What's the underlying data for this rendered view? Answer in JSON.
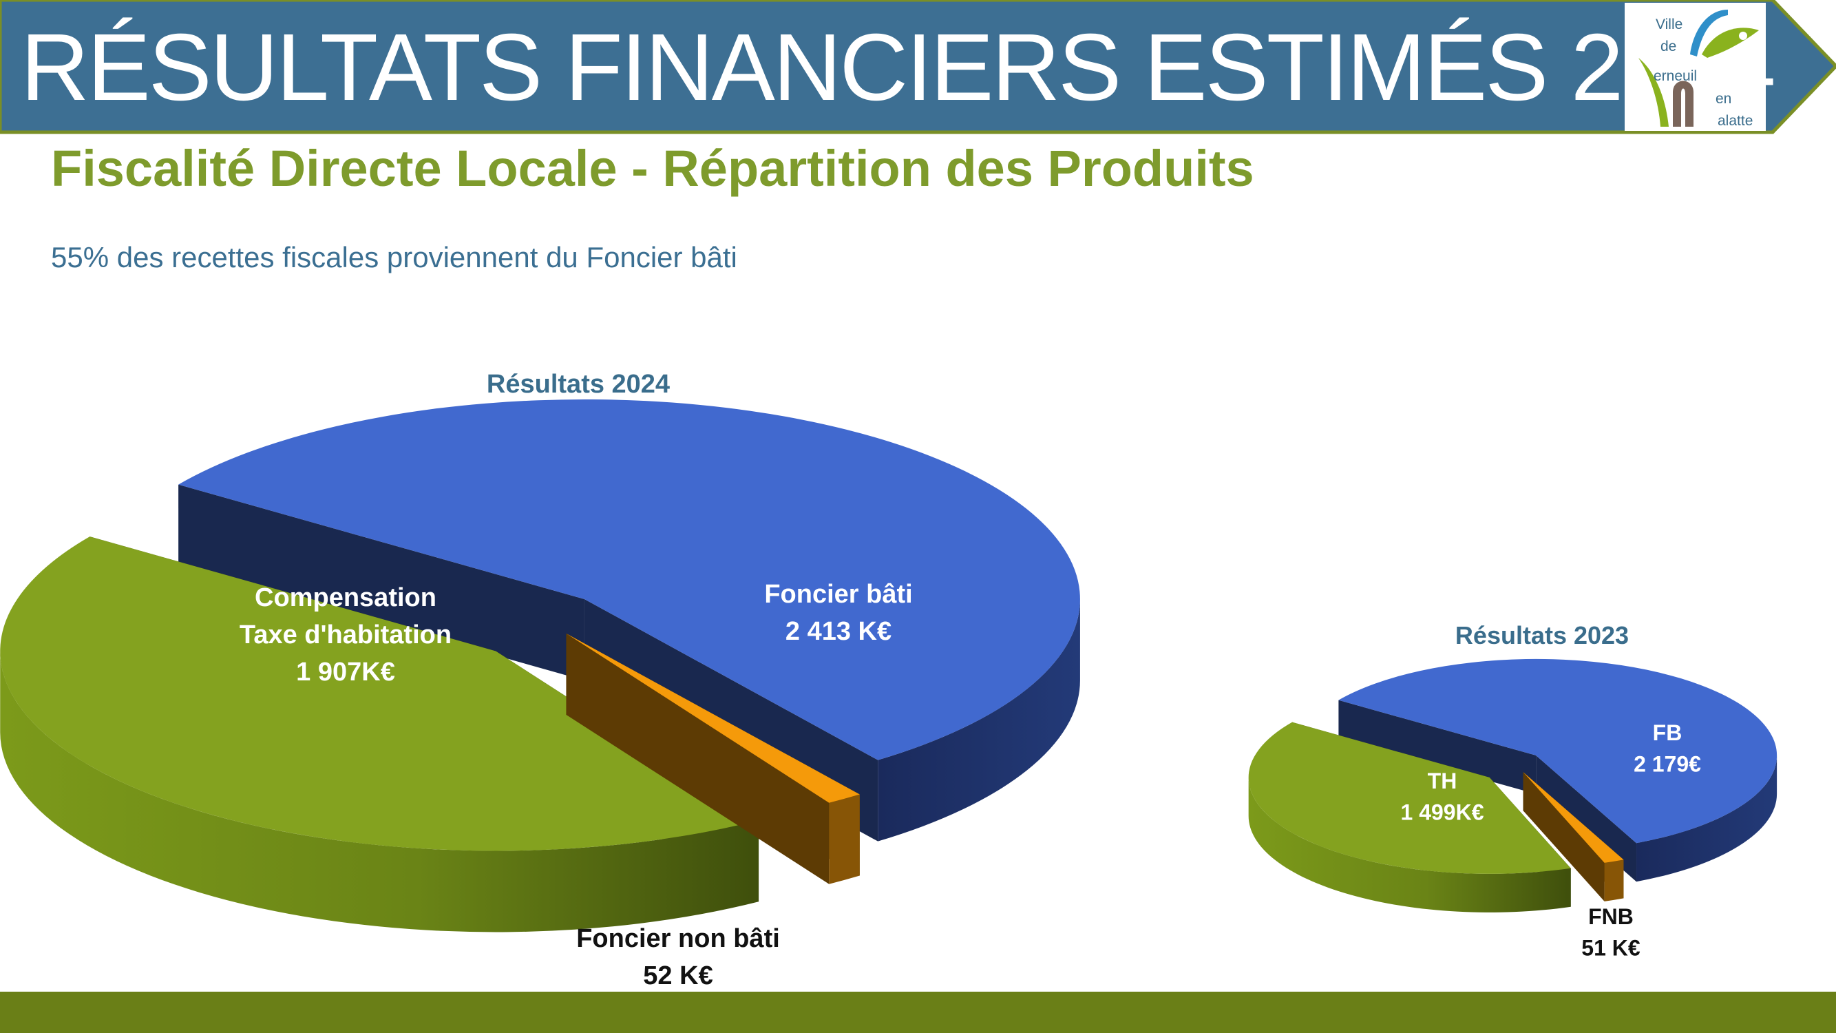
{
  "header": {
    "title": "RÉSULTATS FINANCIERS ESTIMÉS 2024",
    "logo_text": [
      "Ville",
      "de",
      "erneuil",
      "en",
      "alatte"
    ]
  },
  "subtitle": "Fiscalité Directe Locale - Répartition des Produits",
  "note": "55% des recettes fiscales proviennent  du Foncier bâti",
  "colors": {
    "banner": "#3d6f93",
    "banner_border": "#7a8f26",
    "subtitle": "#7e9b2c",
    "note": "#3b6f92",
    "foncier_bati": "#4169cf",
    "compensation_th": "#84a21f",
    "foncier_non_bati": "#f59a0a",
    "footer": "#6a7f17"
  },
  "chart_data": [
    {
      "type": "pie",
      "title": "Résultats 2024",
      "unit": "K€",
      "slices": [
        {
          "name": "Foncier bâti",
          "value": 2413,
          "label": [
            "Foncier bâti",
            "2 413 K€"
          ]
        },
        {
          "name": "Foncier non bâti",
          "value": 52,
          "label": [
            "Foncier non bâti",
            "52 K€"
          ]
        },
        {
          "name": "Compensation Taxe d'habitation",
          "value": 1907,
          "label": [
            "Compensation",
            "Taxe d'habitation",
            "1 907K€"
          ]
        }
      ]
    },
    {
      "type": "pie",
      "title": "Résultats 2023",
      "unit": "K€",
      "slices": [
        {
          "name": "FB",
          "value": 2179,
          "label": [
            "FB",
            "2 179€"
          ]
        },
        {
          "name": "FNB",
          "value": 51,
          "label": [
            "FNB",
            "51 K€"
          ]
        },
        {
          "name": "TH",
          "value": 1499,
          "label": [
            "TH",
            "1 499K€"
          ]
        }
      ]
    }
  ]
}
